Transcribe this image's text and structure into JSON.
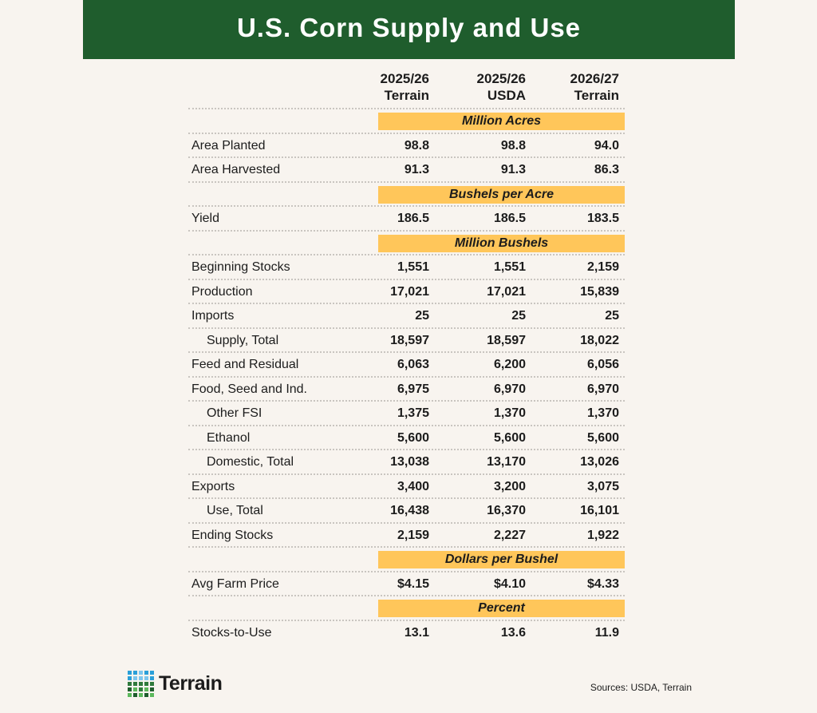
{
  "title": "U.S. Corn Supply and Use",
  "chart_data": {
    "type": "table",
    "columns": [
      {
        "year": "2025/26",
        "source": "Terrain"
      },
      {
        "year": "2025/26",
        "source": "USDA"
      },
      {
        "year": "2026/27",
        "source": "Terrain"
      }
    ],
    "rows": [
      {
        "section": "Million Acres"
      },
      {
        "label": "Area Planted",
        "values": [
          "98.8",
          "98.8",
          "94.0"
        ]
      },
      {
        "label": "Area Harvested",
        "values": [
          "91.3",
          "91.3",
          "86.3"
        ]
      },
      {
        "section": "Bushels per Acre"
      },
      {
        "label": "Yield",
        "values": [
          "186.5",
          "186.5",
          "183.5"
        ]
      },
      {
        "section": "Million Bushels"
      },
      {
        "label": "Beginning Stocks",
        "values": [
          "1,551",
          "1,551",
          "2,159"
        ]
      },
      {
        "label": "Production",
        "values": [
          "17,021",
          "17,021",
          "15,839"
        ]
      },
      {
        "label": "Imports",
        "values": [
          "25",
          "25",
          "25"
        ]
      },
      {
        "label": "Supply, Total",
        "indent": true,
        "values": [
          "18,597",
          "18,597",
          "18,022"
        ]
      },
      {
        "label": "Feed and Residual",
        "values": [
          "6,063",
          "6,200",
          "6,056"
        ]
      },
      {
        "label": "Food, Seed and Ind.",
        "values": [
          "6,975",
          "6,970",
          "6,970"
        ]
      },
      {
        "label": "Other FSI",
        "indent": true,
        "values": [
          "1,375",
          "1,370",
          "1,370"
        ]
      },
      {
        "label": "Ethanol",
        "indent": true,
        "values": [
          "5,600",
          "5,600",
          "5,600"
        ]
      },
      {
        "label": "Domestic, Total",
        "indent": true,
        "values": [
          "13,038",
          "13,170",
          "13,026"
        ]
      },
      {
        "label": "Exports",
        "values": [
          "3,400",
          "3,200",
          "3,075"
        ]
      },
      {
        "label": "Use, Total",
        "indent": true,
        "values": [
          "16,438",
          "16,370",
          "16,101"
        ]
      },
      {
        "label": "Ending Stocks",
        "values": [
          "2,159",
          "2,227",
          "1,922"
        ]
      },
      {
        "section": "Dollars per Bushel"
      },
      {
        "label": "Avg Farm Price",
        "values": [
          "$4.15",
          "$4.10",
          "$4.33"
        ]
      },
      {
        "section": "Percent"
      },
      {
        "label": "Stocks-to-Use",
        "values": [
          "13.1",
          "13.6",
          "11.9"
        ]
      }
    ]
  },
  "logo": {
    "text": "Terrain",
    "colors": [
      "#2a9fd8",
      "#7cc6ee",
      "#2f7a3c",
      "#1f5d2d",
      "#5cb85c"
    ]
  },
  "sources": "Sources: USDA, Terrain",
  "colors": {
    "header": "#1f5d2d",
    "band": "#ffc65a",
    "background": "#f8f4ef"
  }
}
